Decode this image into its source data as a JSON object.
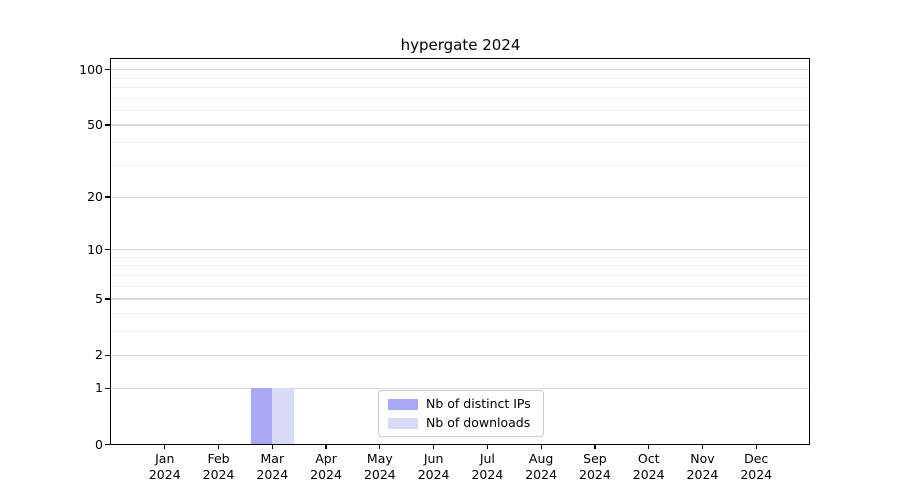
{
  "title": "hypergate 2024",
  "chart_data": {
    "type": "bar",
    "categories": [
      "Jan 2024",
      "Feb 2024",
      "Mar 2024",
      "Apr 2024",
      "May 2024",
      "Jun 2024",
      "Jul 2024",
      "Aug 2024",
      "Sep 2024",
      "Oct 2024",
      "Nov 2024",
      "Dec 2024"
    ],
    "month_labels": [
      "Jan",
      "Feb",
      "Mar",
      "Apr",
      "May",
      "Jun",
      "Jul",
      "Aug",
      "Sep",
      "Oct",
      "Nov",
      "Dec"
    ],
    "year_label": "2024",
    "series": [
      {
        "name": "Nb of distinct IPs",
        "color": "#a8a8f5",
        "values": [
          0,
          0,
          1,
          0,
          0,
          0,
          0,
          0,
          0,
          0,
          0,
          0
        ]
      },
      {
        "name": "Nb of downloads",
        "color": "#d9d9f8",
        "values": [
          0,
          0,
          1,
          0,
          0,
          0,
          0,
          0,
          0,
          0,
          0,
          0
        ]
      }
    ],
    "yscale": "log1p",
    "ylim": [
      0,
      114
    ],
    "y_major_ticks": [
      100,
      50,
      20,
      10,
      5,
      2,
      1,
      0
    ],
    "y_minor_ticks": [
      110,
      90,
      80,
      70,
      60,
      40,
      30,
      9,
      8,
      7,
      6,
      4,
      3
    ],
    "grid": "horizontal",
    "legend_position": "lower center",
    "xlabel": "",
    "ylabel": ""
  },
  "colors": {
    "background": "#ffffff",
    "axis": "#000000",
    "grid_major": "#d9d9d9",
    "grid_minor": "#f0f0f0",
    "legend_border": "#cccccc"
  }
}
